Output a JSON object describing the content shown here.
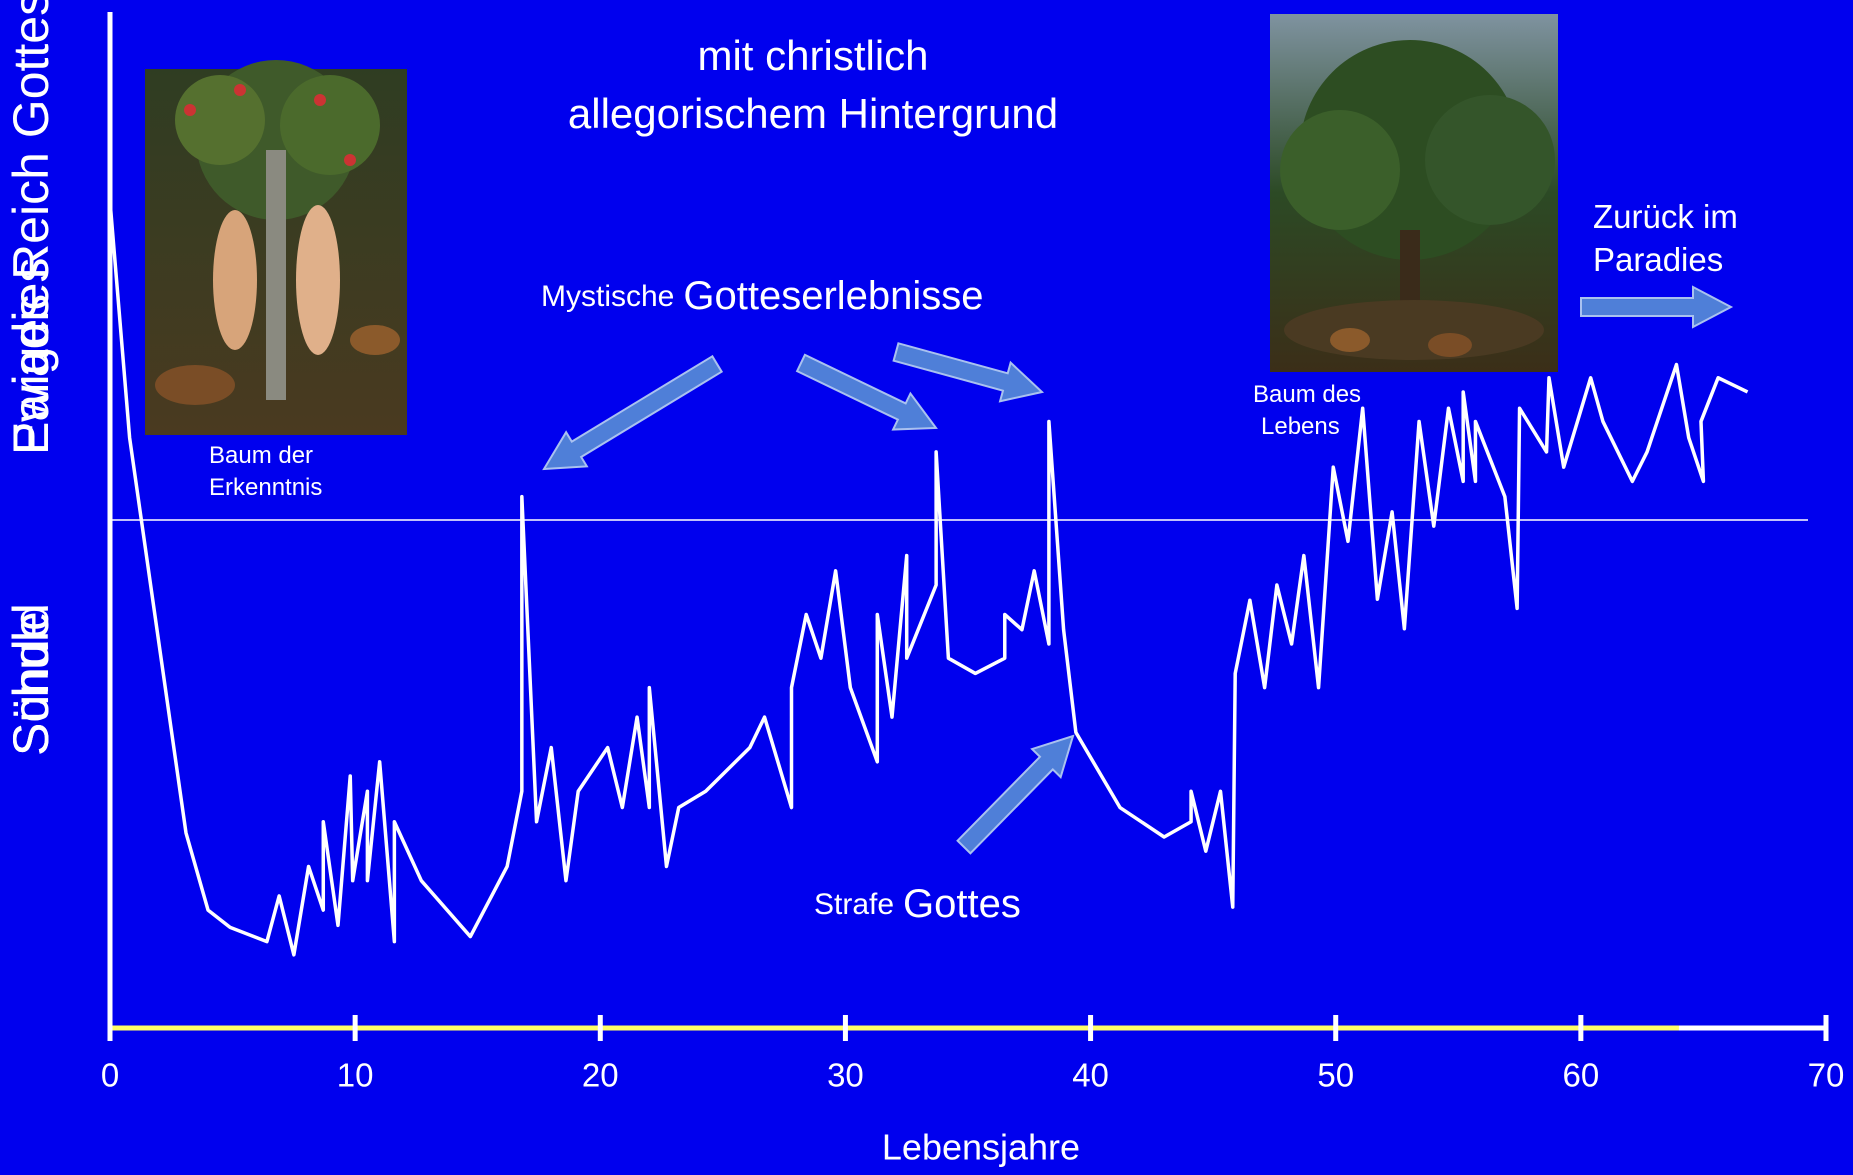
{
  "chart_data": {
    "type": "line",
    "title": [
      "mit christlich",
      "allegorischem Hintergrund"
    ],
    "x_label": "Lebensjahre",
    "y_labels": {
      "top": [
        "Ewiges Reich Gottes",
        "Paradies"
      ],
      "bottom": [
        "Schuld",
        "Sünde"
      ]
    },
    "annotations": [
      {
        "text": [
          "Mystische",
          "Gotteserlebnisse"
        ]
      },
      {
        "text": [
          "Strafe",
          "Gottes"
        ]
      },
      {
        "text": [
          "Baum der",
          "Erkenntnis"
        ]
      },
      {
        "text": [
          "Baum des",
          "Lebens"
        ]
      },
      {
        "text": [
          "Zurück im",
          "Paradies"
        ]
      }
    ],
    "x": [
      0,
      0.8,
      3.1,
      4.0,
      4.9,
      6.4,
      6.9,
      7.5,
      8.1,
      8.7,
      8.7,
      9.3,
      9.8,
      9.9,
      10.5,
      10.5,
      11.0,
      11.6,
      11.6,
      12.7,
      14.7,
      16.2,
      16.8,
      16.8,
      17.4,
      18.0,
      18.6,
      19.1,
      20.3,
      20.9,
      21.5,
      22.0,
      22.0,
      22.7,
      23.2,
      24.3,
      26.1,
      26.7,
      27.8,
      27.8,
      28.4,
      29.0,
      29.6,
      30.2,
      31.3,
      31.3,
      31.9,
      32.5,
      32.5,
      33.7,
      33.7,
      34.2,
      35.3,
      36.5,
      36.5,
      37.2,
      37.7,
      38.3,
      38.3,
      38.9,
      39.4,
      41.2,
      43.0,
      44.1,
      44.1,
      44.7,
      45.3,
      45.8,
      45.9,
      46.5,
      47.1,
      47.6,
      48.2,
      48.7,
      49.3,
      49.9,
      50.5,
      51.1,
      51.7,
      52.3,
      52.8,
      53.4,
      54.0,
      54.6,
      55.2,
      55.2,
      55.7,
      55.7,
      56.9,
      57.4,
      57.5,
      58.6,
      58.7,
      59.3,
      60.4,
      60.9,
      62.1,
      62.7,
      63.9,
      64.4,
      65.0,
      64.9,
      65.6,
      66.8
    ],
    "series": [
      {
        "color": "#ffffff",
        "values": [
          81.4,
          58.1,
          19.2,
          11.6,
          9.9,
          8.5,
          13.0,
          7.2,
          15.9,
          11.6,
          20.3,
          10.1,
          24.8,
          14.5,
          23.3,
          14.5,
          26.2,
          8.5,
          20.3,
          14.5,
          9.0,
          15.9,
          23.3,
          52.3,
          20.3,
          27.6,
          14.5,
          23.3,
          27.6,
          21.7,
          30.6,
          21.7,
          33.5,
          15.9,
          21.7,
          23.3,
          27.6,
          30.6,
          21.7,
          33.5,
          40.7,
          36.4,
          45.0,
          33.5,
          26.2,
          40.7,
          30.6,
          46.5,
          36.4,
          43.6,
          56.7,
          36.4,
          34.9,
          36.4,
          40.7,
          39.2,
          45.0,
          37.8,
          59.7,
          39.2,
          29.1,
          21.7,
          18.8,
          20.3,
          23.3,
          17.4,
          23.3,
          11.9,
          34.9,
          42.1,
          33.5,
          43.6,
          37.8,
          46.5,
          33.5,
          55.2,
          47.9,
          61.0,
          42.2,
          50.8,
          39.3,
          59.7,
          49.4,
          61.0,
          53.8,
          62.6,
          53.8,
          59.7,
          52.3,
          41.3,
          61.0,
          56.7,
          64.0,
          55.2,
          64.0,
          59.7,
          53.8,
          56.7,
          65.3,
          58.1,
          53.8,
          59.7,
          64.0,
          62.6
        ]
      }
    ],
    "reference_line": {
      "y": 50,
      "color": "#ffffff"
    },
    "highlight": {
      "x": [
        0,
        64
      ],
      "color": "#ffff66"
    },
    "xlim": [
      0,
      70
    ],
    "xticks": [
      0,
      10,
      20,
      30,
      40,
      50,
      60,
      70
    ],
    "ylim": [
      0,
      100
    ]
  }
}
